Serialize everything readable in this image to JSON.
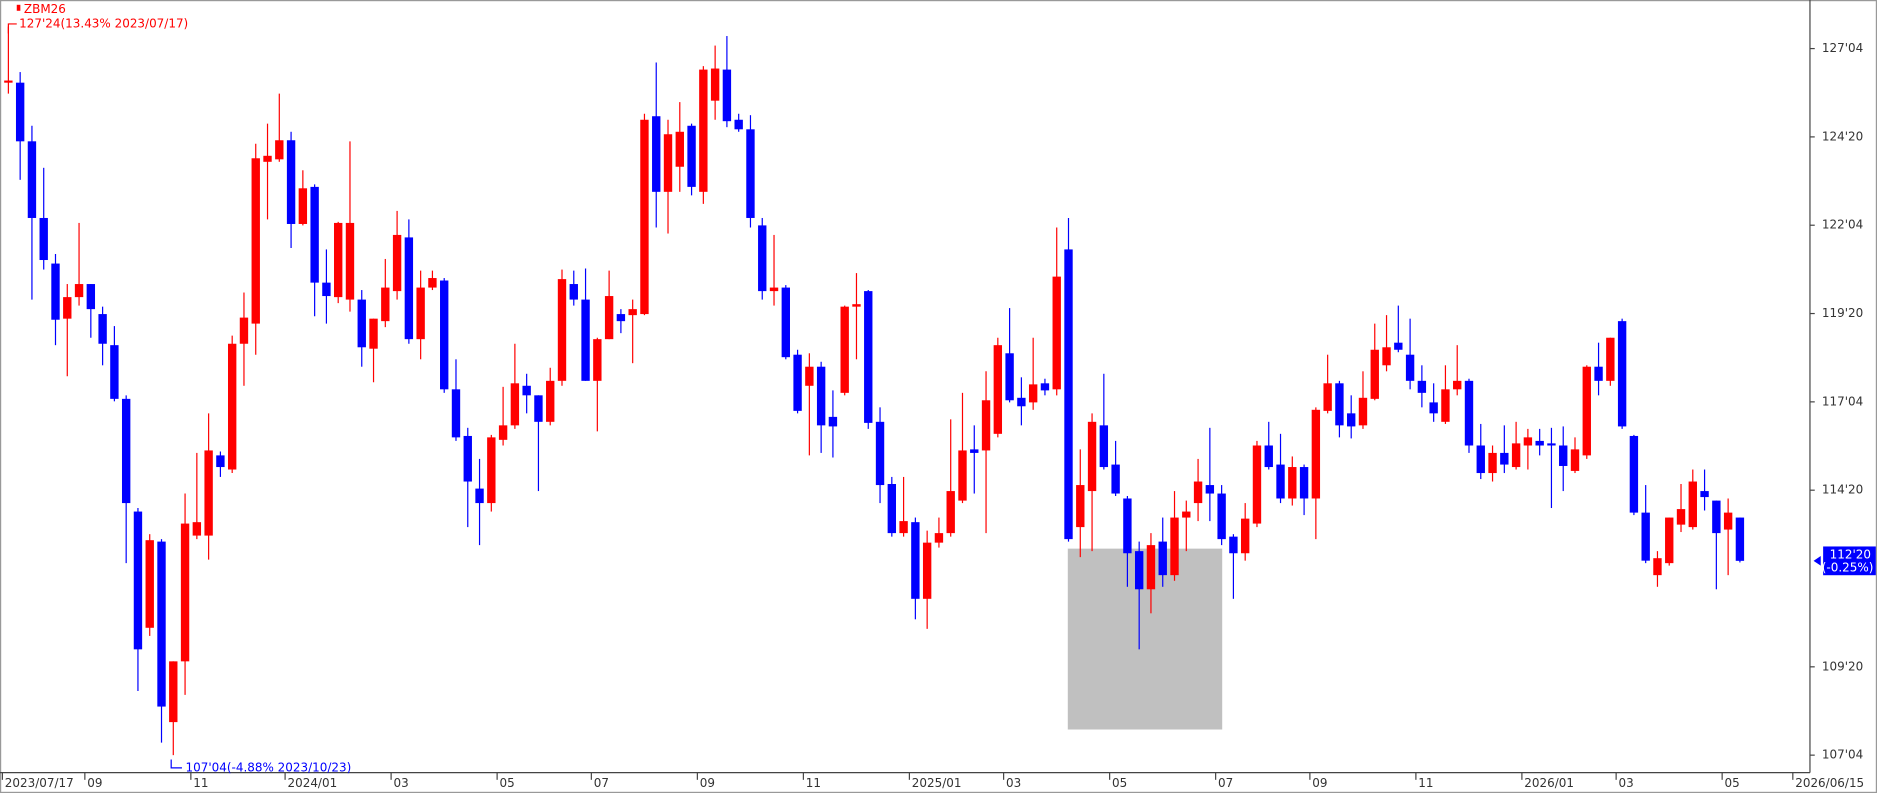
{
  "chart_data": {
    "type": "candlestick",
    "title": "ZBM26",
    "annotations": [
      "127'24(13.43% 2023/07/17)",
      "107'04(-4.88% 2023/10/23)"
    ],
    "last_label": "112'20",
    "last_change": "(-0.25%)",
    "up_color": "#ff0000",
    "down_color": "#0000ff",
    "label_color": "#0000ff",
    "ylim": [
      106.63,
      128.5
    ],
    "yticks": [
      {
        "value": 127.125,
        "label": "127'04"
      },
      {
        "value": 124.625,
        "label": "124'20"
      },
      {
        "value": 122.125,
        "label": "122'04"
      },
      {
        "value": 119.625,
        "label": "119'20"
      },
      {
        "value": 117.125,
        "label": "117'04"
      },
      {
        "value": 114.625,
        "label": "114'20"
      },
      {
        "value": 109.625,
        "label": "109'20"
      },
      {
        "value": 107.125,
        "label": "107'04"
      }
    ],
    "categories": [
      "2023/07/17",
      null,
      null,
      null,
      null,
      null,
      null,
      "09",
      null,
      null,
      null,
      null,
      null,
      null,
      null,
      null,
      "11",
      null,
      null,
      null,
      null,
      null,
      null,
      null,
      "2024/01",
      null,
      null,
      null,
      null,
      null,
      null,
      null,
      null,
      "03",
      null,
      null,
      null,
      null,
      null,
      null,
      null,
      null,
      "05",
      null,
      null,
      null,
      null,
      null,
      null,
      null,
      "07",
      null,
      null,
      null,
      null,
      null,
      null,
      null,
      null,
      "09",
      null,
      null,
      null,
      null,
      null,
      null,
      null,
      null,
      "11",
      null,
      null,
      null,
      null,
      null,
      null,
      null,
      null,
      "2025/01",
      null,
      null,
      null,
      null,
      null,
      null,
      null,
      "03",
      null,
      null,
      null,
      null,
      null,
      null,
      null,
      null,
      "05",
      null,
      null,
      null,
      null,
      null,
      null,
      null,
      null,
      "07",
      null,
      null,
      null,
      null,
      null,
      null,
      null,
      "09",
      null,
      null,
      null,
      null,
      null,
      null,
      null,
      null,
      "11",
      null,
      null,
      null,
      null,
      null,
      null,
      null,
      null,
      "2026/01",
      null,
      null,
      null,
      null,
      null,
      null,
      null,
      "03",
      null,
      null,
      null,
      null,
      null,
      null,
      null,
      null,
      "05",
      null,
      null,
      null,
      null,
      null,
      "2026/06/15"
    ],
    "open": [
      126.16,
      126.16,
      124.5,
      122.33,
      121.04,
      119.48,
      120.09,
      120.46,
      119.61,
      118.73,
      117.21,
      114.02,
      110.73,
      113.17,
      108.06,
      109.78,
      113.34,
      113.34,
      115.61,
      115.21,
      118.77,
      119.34,
      123.92,
      123.99,
      124.53,
      122.16,
      123.21,
      120.5,
      120.09,
      120.02,
      120.02,
      118.63,
      119.41,
      120.26,
      121.78,
      118.9,
      120.36,
      120.56,
      117.48,
      116.16,
      114.67,
      114.26,
      116.05,
      116.46,
      117.58,
      117.31,
      116.56,
      117.72,
      120.46,
      120.02,
      117.72,
      118.9,
      119.61,
      119.58,
      119.61,
      125.21,
      123.07,
      123.78,
      124.94,
      123.07,
      125.65,
      126.53,
      125.11,
      124.84,
      122.12,
      120.26,
      120.36,
      118.46,
      117.58,
      118.12,
      116.7,
      117.38,
      119.82,
      120.26,
      116.56,
      114.8,
      113.41,
      113.72,
      111.55,
      113.14,
      113.41,
      114.33,
      115.78,
      115.75,
      116.22,
      118.5,
      117.24,
      117.11,
      117.65,
      117.48,
      121.44,
      113.58,
      114.6,
      116.46,
      115.35,
      114.39,
      112.9,
      111.82,
      113.17,
      112.22,
      113.85,
      114.26,
      114.77,
      114.53,
      113.31,
      112.84,
      113.68,
      115.89,
      115.35,
      114.39,
      115.28,
      114.39,
      116.87,
      117.65,
      116.8,
      116.46,
      117.21,
      118.16,
      118.8,
      118.46,
      117.72,
      117.11,
      116.56,
      117.48,
      117.72,
      115.89,
      115.11,
      115.68,
      115.28,
      115.89,
      116.02,
      115.95,
      115.89,
      115.17,
      115.61,
      118.12,
      117.72,
      119.41,
      116.16,
      113.99,
      112.22,
      112.56,
      113.65,
      113.58,
      114.6,
      114.33,
      113.51,
      113.85,
      null,
      null,
      null,
      null,
      null
    ],
    "high": [
      127.75,
      126.46,
      124.94,
      123.75,
      121.31,
      120.46,
      122.19,
      120.46,
      119.82,
      119.27,
      117.31,
      114.12,
      113.38,
      113.24,
      109.78,
      114.53,
      115.68,
      116.8,
      115.72,
      119.0,
      120.22,
      124.43,
      125.0,
      125.85,
      124.77,
      123.68,
      123.28,
      121.44,
      122.22,
      124.5,
      120.29,
      119.48,
      121.17,
      122.53,
      122.29,
      120.84,
      120.84,
      120.63,
      118.33,
      116.39,
      115.51,
      116.19,
      117.55,
      118.77,
      117.92,
      117.31,
      118.09,
      120.87,
      120.84,
      120.9,
      118.94,
      120.84,
      119.75,
      120.02,
      125.28,
      126.73,
      125.11,
      125.61,
      125.0,
      126.63,
      127.21,
      127.48,
      125.28,
      125.24,
      122.33,
      121.85,
      120.43,
      118.6,
      118.5,
      118.26,
      117.45,
      119.85,
      120.77,
      120.29,
      116.97,
      115.0,
      115.0,
      113.85,
      113.48,
      113.85,
      116.63,
      117.38,
      116.46,
      117.99,
      118.94,
      119.78,
      117.82,
      118.94,
      117.78,
      122.06,
      122.33,
      115.78,
      116.8,
      117.92,
      116.02,
      114.46,
      113.17,
      113.41,
      113.85,
      114.6,
      114.33,
      115.51,
      116.39,
      114.77,
      113.38,
      114.26,
      116.02,
      116.56,
      116.22,
      115.58,
      115.35,
      116.97,
      118.46,
      117.72,
      117.31,
      117.99,
      119.34,
      119.58,
      119.85,
      119.48,
      118.16,
      117.65,
      118.16,
      118.73,
      117.78,
      116.5,
      115.89,
      116.46,
      116.56,
      116.36,
      116.36,
      116.39,
      116.43,
      116.12,
      118.16,
      118.8,
      118.94,
      119.48,
      116.19,
      114.77,
      112.9,
      113.85,
      114.8,
      115.21,
      115.21,
      114.33,
      114.39,
      113.85,
      null,
      null,
      null,
      null,
      null
    ],
    "low": [
      125.85,
      123.41,
      120.02,
      120.87,
      118.73,
      117.85,
      119.85,
      118.94,
      118.16,
      117.14,
      112.56,
      108.94,
      110.5,
      107.48,
      107.125,
      108.83,
      113.24,
      112.66,
      115.0,
      115.11,
      117.58,
      118.46,
      122.29,
      123.92,
      121.48,
      122.12,
      119.55,
      119.34,
      119.92,
      119.68,
      118.12,
      117.68,
      119.24,
      120.02,
      118.77,
      118.33,
      120.29,
      117.38,
      116.02,
      113.58,
      113.07,
      114.02,
      115.89,
      116.36,
      116.8,
      114.6,
      116.46,
      117.58,
      119.85,
      117.72,
      116.29,
      118.9,
      119.07,
      118.22,
      119.58,
      122.06,
      121.89,
      123.07,
      122.97,
      122.73,
      125.11,
      124.9,
      124.77,
      122.06,
      120.02,
      119.85,
      118.33,
      116.8,
      115.61,
      115.68,
      115.55,
      117.31,
      118.33,
      116.36,
      114.26,
      113.31,
      113.31,
      110.97,
      110.7,
      113.0,
      113.31,
      114.26,
      114.53,
      113.41,
      116.12,
      117.11,
      116.46,
      116.9,
      117.31,
      117.31,
      113.17,
      112.73,
      112.9,
      115.21,
      114.46,
      111.89,
      110.12,
      111.14,
      111.89,
      112.06,
      112.9,
      113.75,
      113.75,
      113.07,
      111.55,
      112.63,
      113.58,
      115.21,
      114.26,
      114.19,
      113.92,
      113.24,
      116.8,
      116.12,
      116.09,
      116.36,
      117.17,
      117.99,
      118.53,
      117.48,
      116.97,
      116.56,
      116.5,
      117.31,
      115.68,
      114.94,
      114.87,
      115.11,
      115.21,
      115.21,
      115.61,
      114.12,
      114.6,
      115.11,
      115.51,
      117.31,
      117.58,
      116.36,
      113.92,
      112.56,
      111.89,
      112.49,
      113.44,
      113.51,
      114.05,
      111.82,
      112.22,
      112.58,
      null,
      null,
      null,
      null,
      null
    ],
    "close": [
      126.22,
      124.5,
      122.33,
      121.14,
      119.45,
      120.09,
      120.46,
      119.75,
      118.77,
      117.21,
      114.26,
      110.12,
      113.21,
      108.5,
      109.78,
      113.68,
      113.72,
      115.75,
      115.28,
      118.77,
      119.51,
      124.02,
      124.09,
      124.53,
      122.16,
      123.17,
      120.5,
      120.12,
      122.19,
      122.19,
      118.67,
      119.48,
      120.36,
      121.85,
      118.9,
      120.36,
      120.63,
      117.48,
      116.12,
      114.87,
      114.26,
      116.12,
      116.46,
      117.65,
      117.31,
      116.56,
      117.72,
      120.6,
      120.02,
      117.72,
      118.9,
      120.12,
      119.41,
      119.75,
      125.11,
      123.07,
      124.7,
      124.77,
      123.21,
      126.53,
      126.56,
      125.07,
      124.84,
      122.33,
      120.26,
      120.36,
      118.39,
      116.87,
      118.12,
      116.46,
      116.43,
      119.82,
      119.89,
      116.53,
      114.77,
      113.41,
      113.75,
      111.55,
      113.14,
      113.41,
      114.6,
      115.75,
      115.68,
      117.17,
      118.73,
      117.17,
      117.0,
      117.62,
      117.45,
      120.67,
      113.24,
      114.77,
      116.56,
      115.28,
      114.53,
      112.84,
      111.82,
      113.07,
      112.22,
      113.85,
      114.02,
      114.87,
      114.53,
      113.24,
      112.84,
      113.82,
      115.89,
      115.28,
      114.39,
      115.28,
      114.39,
      116.9,
      117.65,
      116.46,
      116.43,
      117.24,
      118.6,
      118.67,
      118.6,
      117.72,
      117.38,
      116.8,
      117.48,
      117.72,
      115.89,
      115.11,
      115.68,
      115.35,
      115.95,
      116.12,
      115.89,
      115.89,
      115.31,
      115.78,
      118.12,
      117.72,
      118.94,
      116.43,
      113.99,
      112.63,
      112.7,
      113.85,
      114.09,
      114.87,
      114.43,
      113.41,
      113.99,
      112.625,
      null,
      null,
      null,
      null,
      null
    ]
  }
}
